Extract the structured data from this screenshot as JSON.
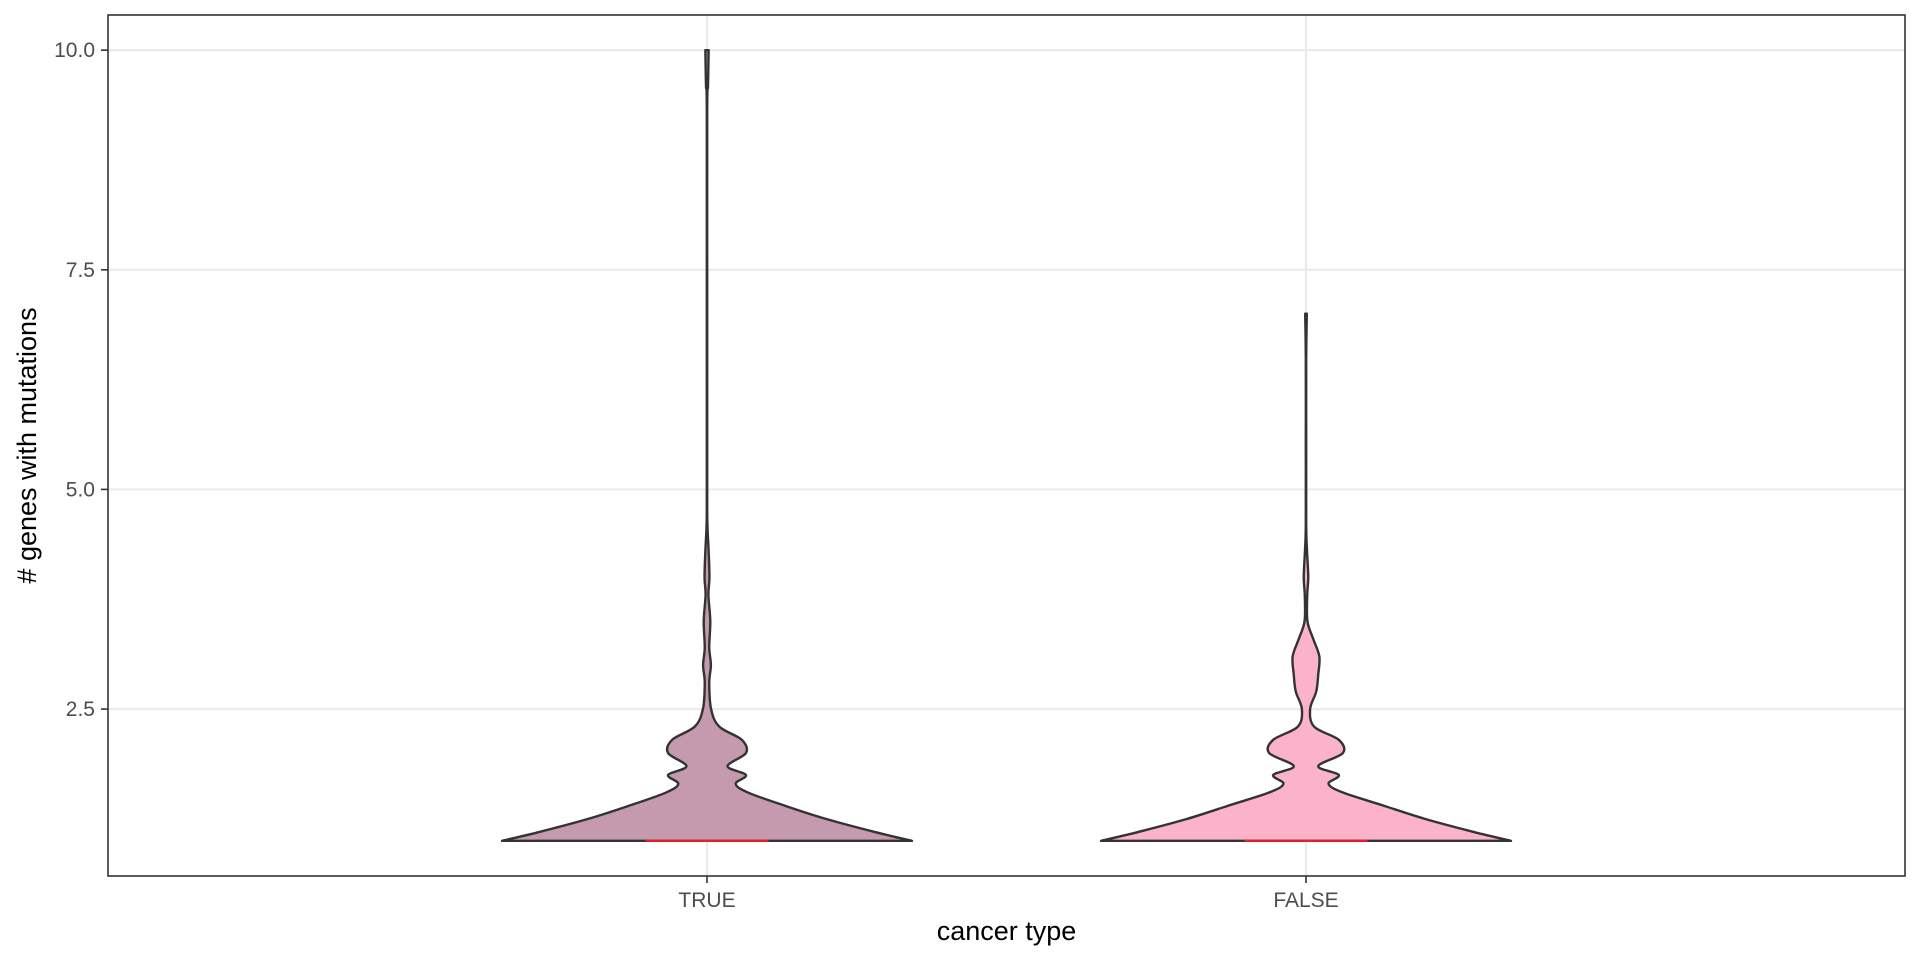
{
  "chart_data": {
    "type": "violin",
    "title": "",
    "xlabel": "cancer type",
    "ylabel": "# genes with mutations",
    "categories": [
      "TRUE",
      "FALSE"
    ],
    "ylim": [
      0.6,
      10.4
    ],
    "yticks": [
      2.5,
      5.0,
      7.5,
      10.0
    ],
    "ytick_labels": [
      "2.5",
      "5.0",
      "7.5",
      "10.0"
    ],
    "grid": true,
    "legend": "none",
    "colors": {
      "fill": [
        "#c59aae",
        "#fbb2cb"
      ],
      "outline": "#333333",
      "median_line": "#e0202a",
      "grid": "#ebebeb",
      "panel_border": "#333333"
    },
    "series": [
      {
        "category": "TRUE",
        "min": 1.0,
        "max": 10.0,
        "median": 1.0,
        "median_halfwidth": 0.3,
        "density": [
          [
            1.0,
            1.0
          ],
          [
            1.1,
            0.82
          ],
          [
            1.25,
            0.58
          ],
          [
            1.4,
            0.38
          ],
          [
            1.55,
            0.2
          ],
          [
            1.65,
            0.14
          ],
          [
            1.75,
            0.19
          ],
          [
            1.85,
            0.1
          ],
          [
            2.0,
            0.19
          ],
          [
            2.15,
            0.17
          ],
          [
            2.3,
            0.06
          ],
          [
            2.5,
            0.02
          ],
          [
            2.8,
            0.011
          ],
          [
            3.0,
            0.019
          ],
          [
            3.2,
            0.011
          ],
          [
            3.5,
            0.016
          ],
          [
            3.8,
            0.007
          ],
          [
            4.0,
            0.012
          ],
          [
            4.3,
            0.008
          ],
          [
            4.6,
            0.002
          ],
          [
            5.0,
            0.001
          ],
          [
            7.0,
            0.001
          ],
          [
            9.3,
            0.001
          ],
          [
            9.6,
            0.005
          ],
          [
            10.0,
            0.008
          ]
        ]
      },
      {
        "category": "FALSE",
        "min": 1.0,
        "max": 7.0,
        "median": 1.0,
        "median_halfwidth": 0.3,
        "density": [
          [
            1.0,
            1.0
          ],
          [
            1.1,
            0.82
          ],
          [
            1.25,
            0.58
          ],
          [
            1.4,
            0.38
          ],
          [
            1.55,
            0.18
          ],
          [
            1.65,
            0.11
          ],
          [
            1.75,
            0.16
          ],
          [
            1.85,
            0.06
          ],
          [
            2.0,
            0.18
          ],
          [
            2.15,
            0.16
          ],
          [
            2.3,
            0.04
          ],
          [
            2.5,
            0.02
          ],
          [
            2.7,
            0.05
          ],
          [
            2.9,
            0.06
          ],
          [
            3.1,
            0.065
          ],
          [
            3.3,
            0.035
          ],
          [
            3.5,
            0.007
          ],
          [
            3.8,
            0.006
          ],
          [
            4.0,
            0.011
          ],
          [
            4.3,
            0.005
          ],
          [
            4.6,
            0.001
          ],
          [
            5.5,
            0.001
          ],
          [
            6.5,
            0.001
          ],
          [
            7.0,
            0.004
          ]
        ]
      }
    ]
  }
}
